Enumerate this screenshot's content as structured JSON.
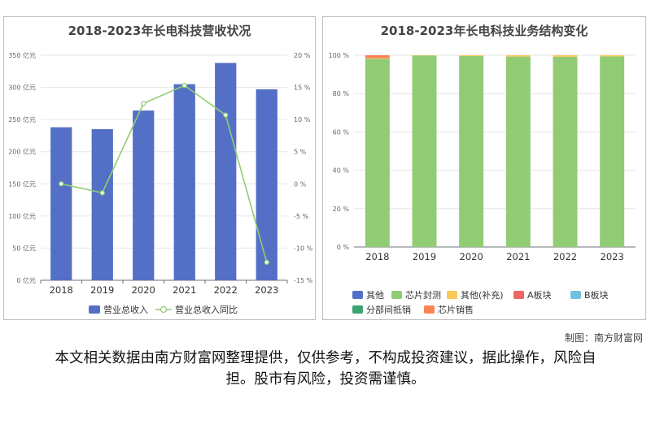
{
  "left_chart": {
    "title": "2018-2023年长电科技营收状况",
    "y_ticks_left": [
      "0 亿元",
      "50 亿元",
      "100 亿元",
      "150 亿元",
      "200 亿元",
      "250 亿元",
      "300 亿元",
      "350 亿元"
    ],
    "y_ticks_right": [
      "-15 %",
      "-10 %",
      "-5 %",
      "0 %",
      "5 %",
      "10 %",
      "15 %",
      "20 %"
    ],
    "legend": [
      "营业总收入",
      "营业总收入同比"
    ]
  },
  "right_chart": {
    "title": "2018-2023年长电科技业务结构变化",
    "y_ticks": [
      "0 %",
      "20 %",
      "40 %",
      "60 %",
      "80 %",
      "100 %"
    ],
    "legend": [
      "其他",
      "芯片封测",
      "其他(补充)",
      "A板块",
      "B板块",
      "分部间抵销",
      "芯片销售"
    ]
  },
  "chart_data": [
    {
      "type": "bar",
      "title": "2018-2023年长电科技营收状况",
      "categories": [
        "2018",
        "2019",
        "2020",
        "2021",
        "2022",
        "2023"
      ],
      "series": [
        {
          "name": "营业总收入",
          "type": "bar",
          "axis": "left",
          "color": "#5470c6",
          "values": [
            238,
            235,
            264,
            305,
            338,
            297
          ]
        },
        {
          "name": "营业总收入同比",
          "type": "line",
          "axis": "right",
          "color": "#91cc75",
          "values": [
            0,
            -1.4,
            12.5,
            15.3,
            10.7,
            -12.2
          ]
        }
      ],
      "ylim_left": [
        0,
        350
      ],
      "ylim_right": [
        -15,
        20
      ],
      "grid": true,
      "legend_position": "bottom"
    },
    {
      "type": "bar",
      "title": "2018-2023年长电科技业务结构变化",
      "stacked": true,
      "categories": [
        "2018",
        "2019",
        "2020",
        "2021",
        "2022",
        "2023"
      ],
      "series": [
        {
          "name": "其他",
          "color": "#5470c6",
          "values": [
            0,
            0,
            0,
            0,
            0,
            0
          ]
        },
        {
          "name": "芯片封测",
          "color": "#91cc75",
          "values": [
            98.2,
            99.8,
            99.6,
            99.3,
            99.2,
            99.4
          ]
        },
        {
          "name": "其他(补充)",
          "color": "#fac858",
          "values": [
            0.2,
            0.2,
            0.4,
            0.7,
            0.8,
            0.6
          ]
        },
        {
          "name": "A板块",
          "color": "#ee6666",
          "values": [
            0,
            0,
            0,
            0,
            0,
            0
          ]
        },
        {
          "name": "B板块",
          "color": "#73c0de",
          "values": [
            0,
            0,
            0,
            0,
            0,
            0
          ]
        },
        {
          "name": "分部间抵销",
          "color": "#3ba272",
          "values": [
            0,
            0,
            0,
            0,
            0,
            0
          ]
        },
        {
          "name": "芯片销售",
          "color": "#fc8452",
          "values": [
            1.6,
            0,
            0,
            0,
            0,
            0
          ]
        }
      ],
      "ylim": [
        0,
        100
      ],
      "grid": true,
      "legend_position": "bottom"
    }
  ],
  "footer": {
    "credit": "制图：南方财富网",
    "disclaimer": "本文相关数据由南方财富网整理提供，仅供参考，不构成投资建议，据此操作，风险自担。股市有风险，投资需谨慎。"
  }
}
